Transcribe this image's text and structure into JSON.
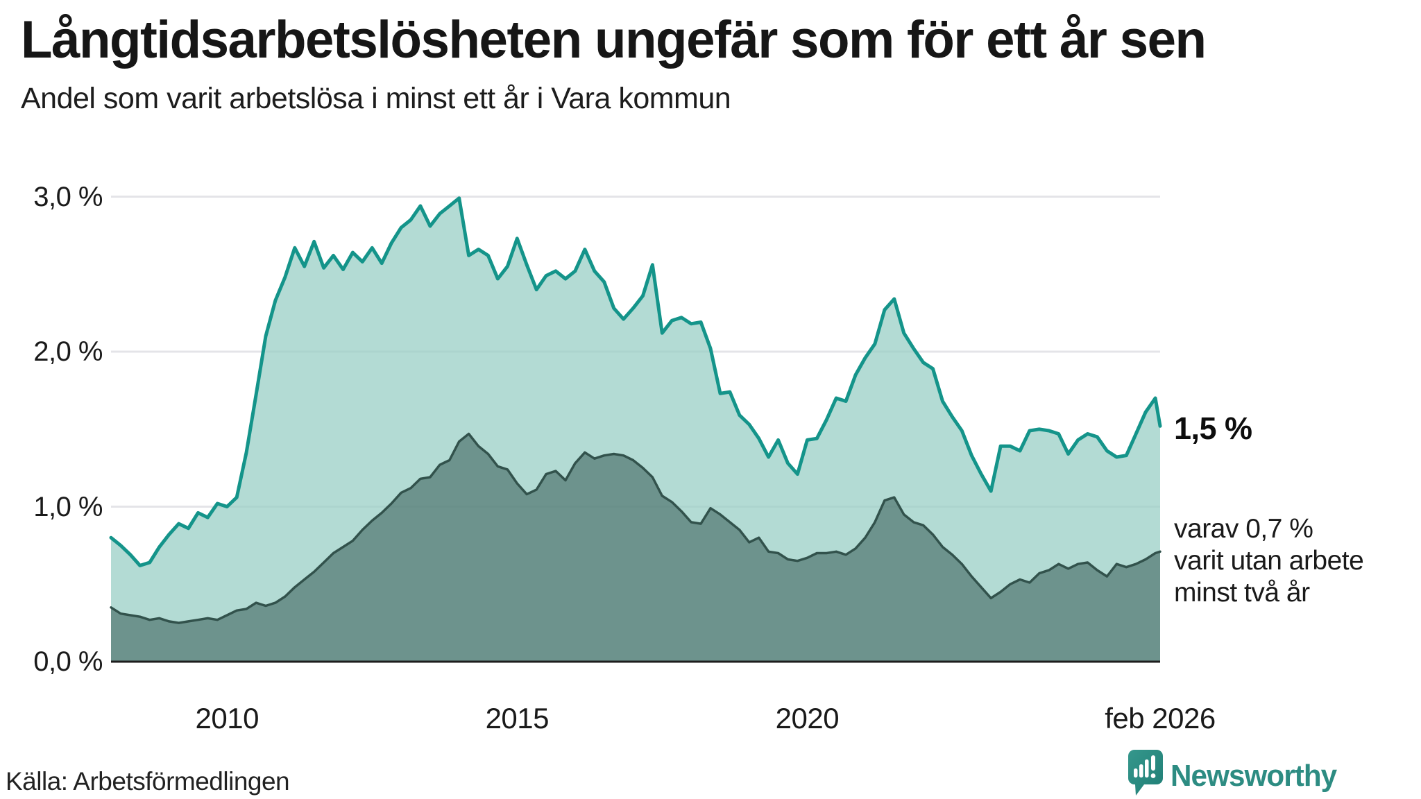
{
  "title": "Långtidsarbetslösheten ungefär som för ett år sen",
  "subtitle": "Andel som varit arbetslösa i minst ett år i Vara kommun",
  "source": "Källa: Arbetsförmedlingen",
  "branding": {
    "name": "Newsworthy",
    "wordmark_color": "#2d8c82",
    "badge_color_top": "#35978c",
    "badge_color_bottom": "#1f7e75",
    "badge_icon": "bar-chart-with-exclamation-pin"
  },
  "annotations": {
    "end_label_total": "1,5 %",
    "end_label_two_years_lines": [
      "varav 0,7 %",
      "varit utan arbete",
      "minst två år"
    ]
  },
  "colors": {
    "background": "#ffffff",
    "gridline": "#e4e4e8",
    "baseline": "#1d1d1d",
    "series_total_line": "#14948a",
    "series_total_fill": "rgba(150,205,196,0.72)",
    "series_two_years_line": "#32524c",
    "series_two_years_fill": "rgba(40,75,70,0.5)",
    "text": "#1a1a1a"
  },
  "y_axis": {
    "ticks": [
      {
        "label": "0,0 %",
        "value": 0
      },
      {
        "label": "1,0 %",
        "value": 1
      },
      {
        "label": "2,0 %",
        "value": 2
      },
      {
        "label": "3,0 %",
        "value": 3
      }
    ],
    "gridlines_at": [
      1,
      2,
      3
    ],
    "baseline_at": 0
  },
  "x_axis": {
    "ticks": [
      {
        "label": "2010",
        "x": 2010
      },
      {
        "label": "2015",
        "x": 2015
      },
      {
        "label": "2020",
        "x": 2020
      },
      {
        "label": "feb 2026",
        "x": 2026.083
      }
    ]
  },
  "chart_data": {
    "type": "area",
    "unit": "percent",
    "title": "Långtidsarbetslösheten ungefär som för ett år sen",
    "subtitle": "Andel som varit arbetslösa i minst ett år i Vara kommun",
    "x_start": 2008.0,
    "x_step": 0.166667,
    "x_end": 2026.083,
    "ylim": [
      0,
      3
    ],
    "grid": true,
    "legend": "inline-end-labels",
    "series": [
      {
        "name": "Andel arbetslösa minst ett år",
        "end_value_label": "1,5 %",
        "line_color": "#14948a",
        "fill_color": "rgba(150,205,196,0.72)",
        "values": [
          0.8,
          0.75,
          0.69,
          0.62,
          0.64,
          0.74,
          0.82,
          0.89,
          0.86,
          0.96,
          0.93,
          1.02,
          1.0,
          1.06,
          1.35,
          1.72,
          2.1,
          2.33,
          2.48,
          2.67,
          2.55,
          2.71,
          2.54,
          2.62,
          2.53,
          2.64,
          2.58,
          2.67,
          2.57,
          2.7,
          2.8,
          2.85,
          2.94,
          2.81,
          2.89,
          2.94,
          2.99,
          2.62,
          2.66,
          2.62,
          2.47,
          2.55,
          2.73,
          2.56,
          2.4,
          2.49,
          2.52,
          2.47,
          2.52,
          2.66,
          2.52,
          2.45,
          2.28,
          2.21,
          2.28,
          2.36,
          2.56,
          2.12,
          2.2,
          2.22,
          2.18,
          2.19,
          2.02,
          1.73,
          1.74,
          1.59,
          1.53,
          1.44,
          1.32,
          1.43,
          1.28,
          1.21,
          1.43,
          1.44,
          1.56,
          1.7,
          1.68,
          1.85,
          1.96,
          2.05,
          2.27,
          2.34,
          2.12,
          2.02,
          1.93,
          1.89,
          1.68,
          1.58,
          1.49,
          1.33,
          1.21,
          1.1,
          1.39,
          1.39,
          1.36,
          1.49,
          1.5,
          1.49,
          1.47,
          1.34,
          1.43,
          1.47,
          1.45,
          1.36,
          1.32,
          1.33,
          1.47,
          1.61,
          1.7,
          1.52
        ]
      },
      {
        "name": "Varav utan arbete minst två år",
        "end_value_label": "varav 0,7 % varit utan arbete minst två år",
        "line_color": "#32524c",
        "fill_color": "rgba(40,75,70,0.5)",
        "values": [
          0.35,
          0.31,
          0.3,
          0.29,
          0.27,
          0.28,
          0.26,
          0.25,
          0.26,
          0.27,
          0.28,
          0.27,
          0.3,
          0.33,
          0.34,
          0.38,
          0.36,
          0.38,
          0.42,
          0.48,
          0.53,
          0.58,
          0.64,
          0.7,
          0.74,
          0.78,
          0.85,
          0.91,
          0.96,
          1.02,
          1.09,
          1.12,
          1.18,
          1.19,
          1.27,
          1.3,
          1.42,
          1.47,
          1.39,
          1.34,
          1.26,
          1.24,
          1.15,
          1.08,
          1.11,
          1.21,
          1.23,
          1.17,
          1.28,
          1.35,
          1.31,
          1.33,
          1.34,
          1.33,
          1.3,
          1.25,
          1.19,
          1.07,
          1.03,
          0.97,
          0.9,
          0.89,
          0.99,
          0.95,
          0.9,
          0.85,
          0.77,
          0.8,
          0.71,
          0.7,
          0.66,
          0.65,
          0.67,
          0.7,
          0.7,
          0.71,
          0.69,
          0.73,
          0.8,
          0.9,
          1.04,
          1.06,
          0.95,
          0.9,
          0.88,
          0.82,
          0.74,
          0.69,
          0.63,
          0.55,
          0.48,
          0.41,
          0.45,
          0.5,
          0.53,
          0.51,
          0.57,
          0.59,
          0.63,
          0.6,
          0.63,
          0.64,
          0.59,
          0.55,
          0.63,
          0.61,
          0.63,
          0.66,
          0.7,
          0.71
        ]
      }
    ]
  }
}
